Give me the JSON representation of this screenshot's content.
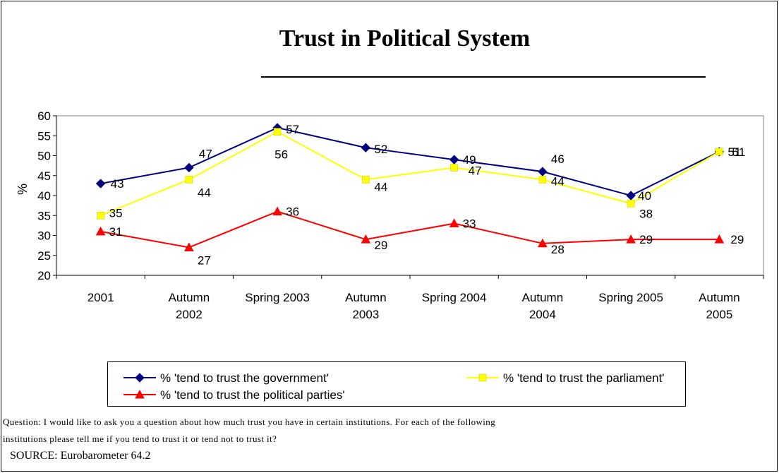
{
  "chart_data": {
    "type": "line",
    "title": "Trust in Political System",
    "ylabel": "%",
    "ylim": [
      20,
      60
    ],
    "yticks": [
      20,
      25,
      30,
      35,
      40,
      45,
      50,
      55,
      60
    ],
    "categories": [
      [
        "2001"
      ],
      [
        "Autumn",
        "2002"
      ],
      [
        "Spring 2003"
      ],
      [
        "Autumn",
        "2003"
      ],
      [
        "Spring 2004"
      ],
      [
        "Autumn",
        "2004"
      ],
      [
        "Spring 2005"
      ],
      [
        "Autumn",
        "2005"
      ]
    ],
    "series": [
      {
        "name": "% 'tend to trust the government'",
        "values": [
          43,
          47,
          57,
          52,
          49,
          46,
          40,
          51
        ],
        "color": "#000080",
        "marker": "diamond"
      },
      {
        "name": "% 'tend to trust the parliament'",
        "values": [
          35,
          44,
          56,
          44,
          47,
          44,
          38,
          51
        ],
        "color": "#FFFF00",
        "marker": "square"
      },
      {
        "name": "% 'tend to trust the political parties'",
        "values": [
          31,
          27,
          36,
          29,
          33,
          28,
          29,
          29
        ],
        "color": "#FF0000",
        "marker": "triangle"
      }
    ],
    "legend_position": "bottom",
    "grid": false
  },
  "question_line1": "Question: I would like to ask you a question about how much trust you have in certain institutions. For each of the following",
  "question_line2": "institutions please tell me if you tend to trust it or tend not to trust it?",
  "source": "SOURCE: Eurobarometer 64.2"
}
